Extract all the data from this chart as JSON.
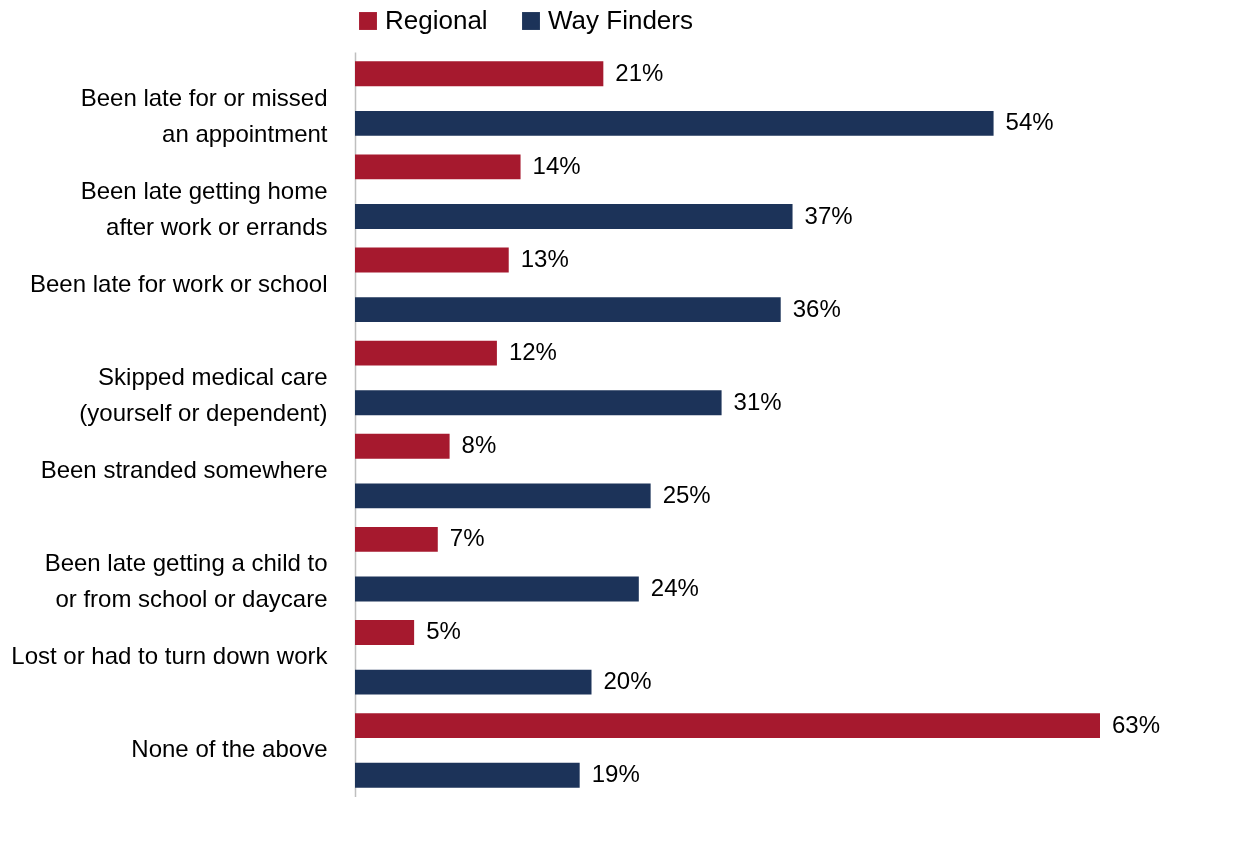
{
  "chart_data": {
    "type": "bar",
    "orientation": "horizontal",
    "legend": "top",
    "categories": [
      "Been late for or missed an appointment",
      "Been late getting home after work or errands",
      "Been late for work or school",
      "Skipped medical care (yourself or dependent)",
      "Been stranded somewhere",
      "Been late getting a child to or from school or daycare",
      "Lost or had to turn down work",
      "None of the above"
    ],
    "series": [
      {
        "name": "Regional",
        "color": "#a6192e",
        "values": [
          21,
          14,
          13,
          12,
          8,
          7,
          5,
          63
        ],
        "value_labels": [
          "21%",
          "14%",
          "13%",
          "12%",
          "8%",
          "7%",
          "5%",
          "63%"
        ]
      },
      {
        "name": "Way Finders",
        "color": "#1c3359",
        "values": [
          54,
          37,
          36,
          31,
          25,
          24,
          20,
          19
        ],
        "value_labels": [
          "54%",
          "37%",
          "36%",
          "31%",
          "25%",
          "24%",
          "20%",
          "19%"
        ]
      }
    ]
  }
}
